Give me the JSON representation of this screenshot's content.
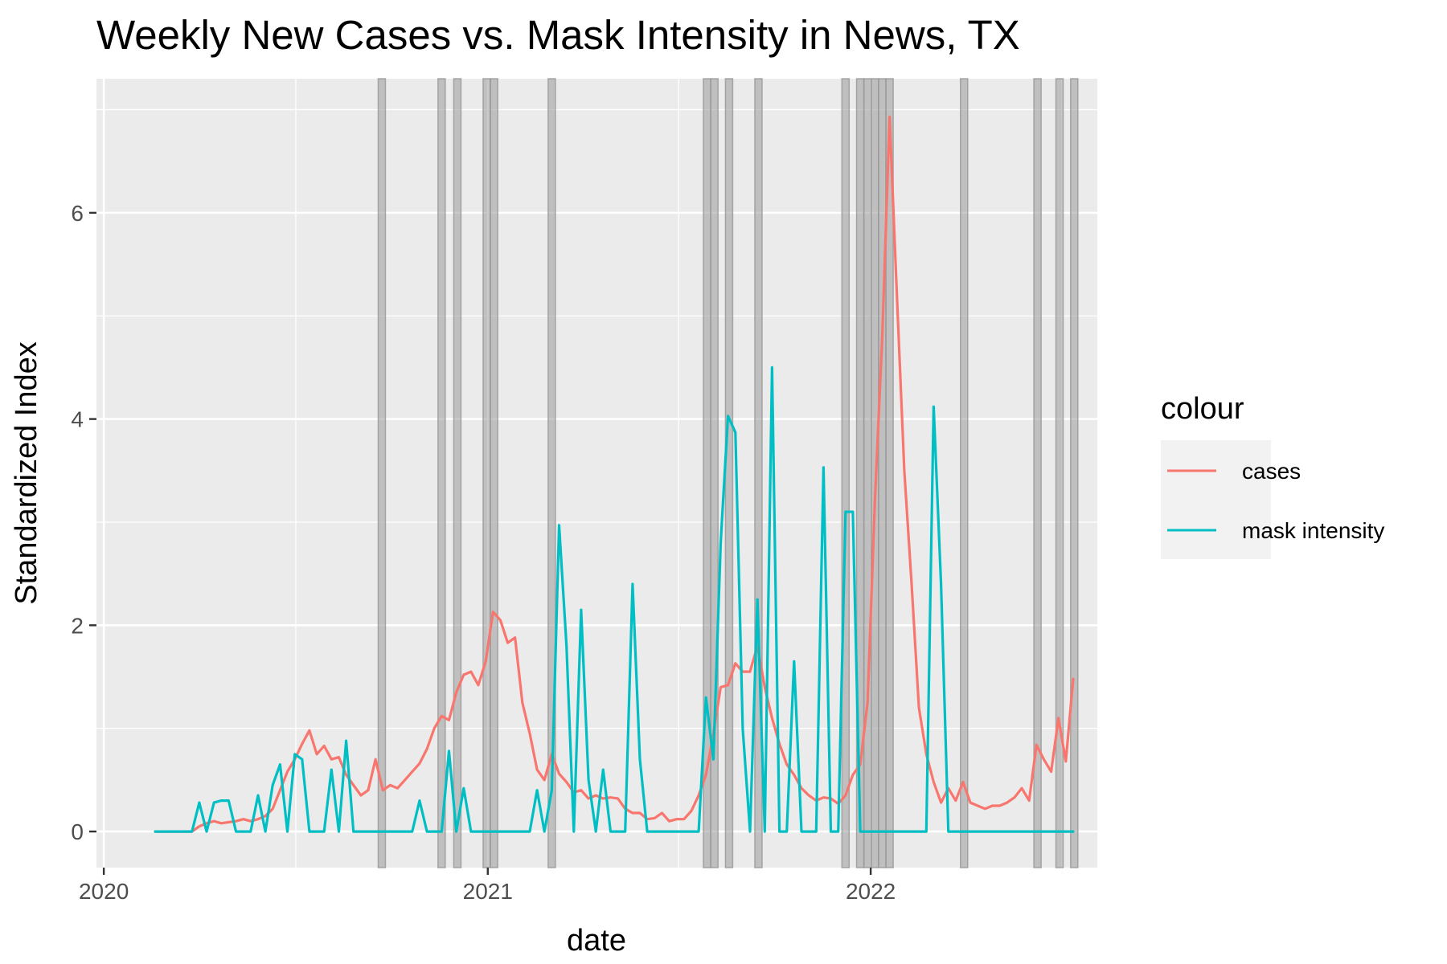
{
  "chart_data": {
    "type": "line",
    "title": "Weekly New Cases vs. Mask Intensity in News, TX",
    "xlabel": "date",
    "ylabel": "Standardized Index",
    "xlim": [
      "2019-12-25",
      "2022-08-05"
    ],
    "ylim": [
      -0.35,
      7.3
    ],
    "x_ticks": [
      {
        "label": "2020",
        "date": "2020-01-01"
      },
      {
        "label": "2021",
        "date": "2021-01-01"
      },
      {
        "label": "2022",
        "date": "2022-01-01"
      }
    ],
    "y_ticks": [
      0,
      2,
      4,
      6
    ],
    "grid": true,
    "legend": {
      "title": "colour",
      "position": "right"
    },
    "shaded_weeks": [
      "2020-09-22",
      "2020-11-18",
      "2020-12-03",
      "2020-12-31",
      "2021-01-07",
      "2021-03-03",
      "2021-07-29",
      "2021-08-05",
      "2021-08-19",
      "2021-09-16",
      "2021-12-08",
      "2021-12-22",
      "2021-12-29",
      "2022-01-05",
      "2022-01-12",
      "2022-01-19",
      "2022-03-31",
      "2022-06-09",
      "2022-06-30",
      "2022-07-14"
    ],
    "series": [
      {
        "name": "cases",
        "color": "#F8766D",
        "points": [
          [
            "2020-02-19",
            0
          ],
          [
            "2020-02-26",
            0
          ],
          [
            "2020-03-04",
            0
          ],
          [
            "2020-03-11",
            0
          ],
          [
            "2020-03-18",
            0
          ],
          [
            "2020-03-25",
            0
          ],
          [
            "2020-04-01",
            0.05
          ],
          [
            "2020-04-08",
            0.08
          ],
          [
            "2020-04-15",
            0.1
          ],
          [
            "2020-04-22",
            0.08
          ],
          [
            "2020-04-29",
            0.09
          ],
          [
            "2020-05-06",
            0.1
          ],
          [
            "2020-05-13",
            0.12
          ],
          [
            "2020-05-20",
            0.1
          ],
          [
            "2020-05-27",
            0.12
          ],
          [
            "2020-06-03",
            0.15
          ],
          [
            "2020-06-10",
            0.22
          ],
          [
            "2020-06-17",
            0.4
          ],
          [
            "2020-06-24",
            0.58
          ],
          [
            "2020-07-01",
            0.7
          ],
          [
            "2020-07-08",
            0.85
          ],
          [
            "2020-07-15",
            0.98
          ],
          [
            "2020-07-22",
            0.75
          ],
          [
            "2020-07-29",
            0.83
          ],
          [
            "2020-08-05",
            0.7
          ],
          [
            "2020-08-12",
            0.72
          ],
          [
            "2020-08-19",
            0.55
          ],
          [
            "2020-08-26",
            0.45
          ],
          [
            "2020-09-02",
            0.35
          ],
          [
            "2020-09-09",
            0.4
          ],
          [
            "2020-09-16",
            0.7
          ],
          [
            "2020-09-23",
            0.4
          ],
          [
            "2020-09-30",
            0.45
          ],
          [
            "2020-10-07",
            0.42
          ],
          [
            "2020-10-14",
            0.5
          ],
          [
            "2020-10-21",
            0.58
          ],
          [
            "2020-10-28",
            0.66
          ],
          [
            "2020-11-04",
            0.8
          ],
          [
            "2020-11-11",
            1.0
          ],
          [
            "2020-11-18",
            1.12
          ],
          [
            "2020-11-25",
            1.08
          ],
          [
            "2020-12-02",
            1.35
          ],
          [
            "2020-12-09",
            1.52
          ],
          [
            "2020-12-16",
            1.55
          ],
          [
            "2020-12-23",
            1.42
          ],
          [
            "2020-12-30",
            1.65
          ],
          [
            "2021-01-06",
            2.13
          ],
          [
            "2021-01-13",
            2.05
          ],
          [
            "2021-01-20",
            1.83
          ],
          [
            "2021-01-27",
            1.88
          ],
          [
            "2021-02-03",
            1.25
          ],
          [
            "2021-02-10",
            0.95
          ],
          [
            "2021-02-17",
            0.6
          ],
          [
            "2021-02-24",
            0.5
          ],
          [
            "2021-03-03",
            0.75
          ],
          [
            "2021-03-10",
            0.56
          ],
          [
            "2021-03-17",
            0.48
          ],
          [
            "2021-03-24",
            0.38
          ],
          [
            "2021-03-31",
            0.4
          ],
          [
            "2021-04-07",
            0.32
          ],
          [
            "2021-04-14",
            0.35
          ],
          [
            "2021-04-21",
            0.32
          ],
          [
            "2021-04-28",
            0.33
          ],
          [
            "2021-05-05",
            0.32
          ],
          [
            "2021-05-12",
            0.22
          ],
          [
            "2021-05-19",
            0.18
          ],
          [
            "2021-05-26",
            0.18
          ],
          [
            "2021-06-02",
            0.12
          ],
          [
            "2021-06-09",
            0.13
          ],
          [
            "2021-06-16",
            0.18
          ],
          [
            "2021-06-23",
            0.1
          ],
          [
            "2021-06-30",
            0.12
          ],
          [
            "2021-07-07",
            0.12
          ],
          [
            "2021-07-14",
            0.2
          ],
          [
            "2021-07-21",
            0.35
          ],
          [
            "2021-07-28",
            0.55
          ],
          [
            "2021-08-04",
            0.95
          ],
          [
            "2021-08-11",
            1.4
          ],
          [
            "2021-08-18",
            1.42
          ],
          [
            "2021-08-25",
            1.63
          ],
          [
            "2021-09-01",
            1.55
          ],
          [
            "2021-09-08",
            1.55
          ],
          [
            "2021-09-15",
            1.8
          ],
          [
            "2021-09-22",
            1.4
          ],
          [
            "2021-09-29",
            1.1
          ],
          [
            "2021-10-06",
            0.85
          ],
          [
            "2021-10-13",
            0.65
          ],
          [
            "2021-10-20",
            0.55
          ],
          [
            "2021-10-27",
            0.42
          ],
          [
            "2021-11-03",
            0.35
          ],
          [
            "2021-11-10",
            0.3
          ],
          [
            "2021-11-17",
            0.33
          ],
          [
            "2021-11-24",
            0.32
          ],
          [
            "2021-12-01",
            0.27
          ],
          [
            "2021-12-08",
            0.35
          ],
          [
            "2021-12-15",
            0.55
          ],
          [
            "2021-12-22",
            0.65
          ],
          [
            "2021-12-29",
            1.25
          ],
          [
            "2022-01-05",
            3.2
          ],
          [
            "2022-01-12",
            4.8
          ],
          [
            "2022-01-19",
            6.93
          ],
          [
            "2022-01-26",
            5.2
          ],
          [
            "2022-02-02",
            3.5
          ],
          [
            "2022-02-09",
            2.4
          ],
          [
            "2022-02-16",
            1.2
          ],
          [
            "2022-02-23",
            0.75
          ],
          [
            "2022-03-02",
            0.48
          ],
          [
            "2022-03-09",
            0.28
          ],
          [
            "2022-03-16",
            0.42
          ],
          [
            "2022-03-23",
            0.3
          ],
          [
            "2022-03-30",
            0.48
          ],
          [
            "2022-04-06",
            0.28
          ],
          [
            "2022-04-13",
            0.25
          ],
          [
            "2022-04-20",
            0.22
          ],
          [
            "2022-04-27",
            0.25
          ],
          [
            "2022-05-04",
            0.25
          ],
          [
            "2022-05-11",
            0.28
          ],
          [
            "2022-05-18",
            0.33
          ],
          [
            "2022-05-25",
            0.42
          ],
          [
            "2022-06-01",
            0.3
          ],
          [
            "2022-06-08",
            0.84
          ],
          [
            "2022-06-15",
            0.7
          ],
          [
            "2022-06-22",
            0.58
          ],
          [
            "2022-06-29",
            1.1
          ],
          [
            "2022-07-06",
            0.68
          ],
          [
            "2022-07-13",
            1.48
          ]
        ]
      },
      {
        "name": "mask intensity",
        "color": "#00BFC4",
        "points": [
          [
            "2020-02-19",
            0
          ],
          [
            "2020-02-26",
            0
          ],
          [
            "2020-03-04",
            0
          ],
          [
            "2020-03-11",
            0
          ],
          [
            "2020-03-18",
            0
          ],
          [
            "2020-03-25",
            0
          ],
          [
            "2020-04-01",
            0.28
          ],
          [
            "2020-04-08",
            0
          ],
          [
            "2020-04-15",
            0.28
          ],
          [
            "2020-04-22",
            0.3
          ],
          [
            "2020-04-29",
            0.3
          ],
          [
            "2020-05-06",
            0
          ],
          [
            "2020-05-13",
            0
          ],
          [
            "2020-05-20",
            0
          ],
          [
            "2020-05-27",
            0.35
          ],
          [
            "2020-06-03",
            0
          ],
          [
            "2020-06-10",
            0.45
          ],
          [
            "2020-06-17",
            0.65
          ],
          [
            "2020-06-24",
            0
          ],
          [
            "2020-07-01",
            0.75
          ],
          [
            "2020-07-08",
            0.7
          ],
          [
            "2020-07-15",
            0
          ],
          [
            "2020-07-22",
            0
          ],
          [
            "2020-07-29",
            0
          ],
          [
            "2020-08-05",
            0.6
          ],
          [
            "2020-08-12",
            0
          ],
          [
            "2020-08-19",
            0.88
          ],
          [
            "2020-08-26",
            0
          ],
          [
            "2020-09-02",
            0
          ],
          [
            "2020-09-09",
            0
          ],
          [
            "2020-09-16",
            0
          ],
          [
            "2020-09-23",
            0
          ],
          [
            "2020-09-30",
            0
          ],
          [
            "2020-10-07",
            0
          ],
          [
            "2020-10-14",
            0
          ],
          [
            "2020-10-21",
            0
          ],
          [
            "2020-10-28",
            0.3
          ],
          [
            "2020-11-04",
            0
          ],
          [
            "2020-11-11",
            0
          ],
          [
            "2020-11-18",
            0
          ],
          [
            "2020-11-25",
            0.78
          ],
          [
            "2020-12-02",
            0
          ],
          [
            "2020-12-09",
            0.42
          ],
          [
            "2020-12-16",
            0
          ],
          [
            "2020-12-23",
            0
          ],
          [
            "2020-12-30",
            0
          ],
          [
            "2021-01-06",
            0
          ],
          [
            "2021-01-13",
            0
          ],
          [
            "2021-01-20",
            0
          ],
          [
            "2021-01-27",
            0
          ],
          [
            "2021-02-03",
            0
          ],
          [
            "2021-02-10",
            0
          ],
          [
            "2021-02-17",
            0.4
          ],
          [
            "2021-02-24",
            0
          ],
          [
            "2021-03-03",
            0.4
          ],
          [
            "2021-03-10",
            2.97
          ],
          [
            "2021-03-17",
            1.8
          ],
          [
            "2021-03-24",
            0
          ],
          [
            "2021-03-31",
            2.15
          ],
          [
            "2021-04-07",
            0.5
          ],
          [
            "2021-04-14",
            0
          ],
          [
            "2021-04-21",
            0.6
          ],
          [
            "2021-04-28",
            0
          ],
          [
            "2021-05-05",
            0
          ],
          [
            "2021-05-12",
            0
          ],
          [
            "2021-05-19",
            2.4
          ],
          [
            "2021-05-26",
            0.7
          ],
          [
            "2021-06-02",
            0
          ],
          [
            "2021-06-09",
            0
          ],
          [
            "2021-06-16",
            0
          ],
          [
            "2021-06-23",
            0
          ],
          [
            "2021-06-30",
            0
          ],
          [
            "2021-07-07",
            0
          ],
          [
            "2021-07-14",
            0
          ],
          [
            "2021-07-21",
            0
          ],
          [
            "2021-07-28",
            1.3
          ],
          [
            "2021-08-04",
            0.7
          ],
          [
            "2021-08-11",
            2.8
          ],
          [
            "2021-08-18",
            4.03
          ],
          [
            "2021-08-25",
            3.87
          ],
          [
            "2021-09-01",
            1.0
          ],
          [
            "2021-09-08",
            0
          ],
          [
            "2021-09-15",
            2.25
          ],
          [
            "2021-09-22",
            0
          ],
          [
            "2021-09-29",
            4.5
          ],
          [
            "2021-10-06",
            0
          ],
          [
            "2021-10-13",
            0
          ],
          [
            "2021-10-20",
            1.65
          ],
          [
            "2021-10-27",
            0
          ],
          [
            "2021-11-03",
            0
          ],
          [
            "2021-11-10",
            0
          ],
          [
            "2021-11-17",
            3.53
          ],
          [
            "2021-11-24",
            0
          ],
          [
            "2021-12-01",
            0
          ],
          [
            "2021-12-08",
            3.1
          ],
          [
            "2021-12-15",
            3.1
          ],
          [
            "2021-12-22",
            0
          ],
          [
            "2021-12-29",
            0
          ],
          [
            "2022-01-05",
            0
          ],
          [
            "2022-01-12",
            0
          ],
          [
            "2022-01-19",
            0
          ],
          [
            "2022-01-26",
            0
          ],
          [
            "2022-02-02",
            0
          ],
          [
            "2022-02-09",
            0
          ],
          [
            "2022-02-16",
            0
          ],
          [
            "2022-02-23",
            0
          ],
          [
            "2022-03-02",
            4.12
          ],
          [
            "2022-03-09",
            2.4
          ],
          [
            "2022-03-16",
            0
          ],
          [
            "2022-03-23",
            0
          ],
          [
            "2022-03-30",
            0
          ],
          [
            "2022-04-06",
            0
          ],
          [
            "2022-04-13",
            0
          ],
          [
            "2022-04-20",
            0
          ],
          [
            "2022-04-27",
            0
          ],
          [
            "2022-05-04",
            0
          ],
          [
            "2022-05-11",
            0
          ],
          [
            "2022-05-18",
            0
          ],
          [
            "2022-05-25",
            0
          ],
          [
            "2022-06-01",
            0
          ],
          [
            "2022-06-08",
            0
          ],
          [
            "2022-06-15",
            0
          ],
          [
            "2022-06-22",
            0
          ],
          [
            "2022-06-29",
            0
          ],
          [
            "2022-07-06",
            0
          ],
          [
            "2022-07-13",
            0
          ]
        ]
      }
    ]
  }
}
